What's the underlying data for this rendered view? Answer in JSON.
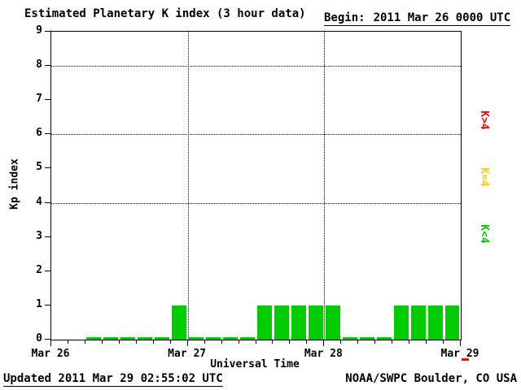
{
  "title": "Estimated Planetary K index (3 hour data)",
  "begin_label": "Begin:",
  "begin_value": "2011 Mar 26 0000 UTC",
  "footer": {
    "updated": "Updated 2011 Mar 29 02:55:02 UTC",
    "source": "NOAA/SWPC Boulder, CO USA"
  },
  "colors": {
    "bar_green": "#00cc00",
    "legend_red": "#ff0000",
    "legend_yellow": "#ffcc00",
    "legend_green": "#00cc00",
    "axis": "#000000",
    "end_marker": "#ff0000"
  },
  "legend": [
    {
      "label": "K>4",
      "color": "#ff0000"
    },
    {
      "label": "K=4",
      "color": "#ffcc00"
    },
    {
      "label": "K<4",
      "color": "#00cc00"
    }
  ],
  "chart_data": {
    "type": "bar",
    "title": "Estimated Planetary K index (3 hour data)",
    "xlabel": "Universal Time",
    "ylabel": "Kp index",
    "ylim": [
      0,
      9
    ],
    "yticks": [
      0,
      1,
      2,
      3,
      4,
      5,
      6,
      7,
      8,
      9
    ],
    "gridlines_y": [
      4,
      6,
      8
    ],
    "x_tick_labels": [
      "Mar 26",
      "Mar 27",
      "Mar 28",
      "Mar 29"
    ],
    "begin": "2011 Mar 26 0000 UTC",
    "bar_interval_hours": 3,
    "values": [
      null,
      null,
      0,
      0,
      0,
      0,
      0,
      1,
      0,
      0,
      0,
      0,
      1,
      1,
      1,
      1,
      1,
      0,
      0,
      0,
      1,
      1,
      1,
      1
    ],
    "color_rule": "green K<4, yellow K=4, red K>4",
    "legend_position": "right",
    "grid": "dotted"
  }
}
